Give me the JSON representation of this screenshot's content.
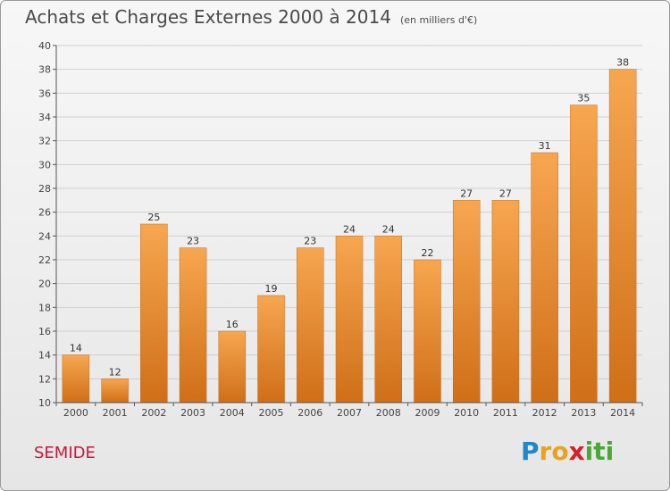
{
  "header": {
    "title": "Achats et Charges Externes 2000 à 2014",
    "unit": "(en milliers d'€)"
  },
  "footer": {
    "town": "SEMIDE",
    "logo_letters": [
      "P",
      "r",
      "o",
      "x",
      "i",
      "t",
      "i"
    ]
  },
  "colors": {
    "bar_light": "#f7a650",
    "bar_dark": "#cf6f18",
    "grid": "#cfcfcf",
    "axis": "#555555",
    "town": "#c8173d"
  },
  "chart_data": {
    "type": "bar",
    "categories": [
      "2000",
      "2001",
      "2002",
      "2003",
      "2004",
      "2005",
      "2006",
      "2007",
      "2008",
      "2009",
      "2010",
      "2011",
      "2012",
      "2013",
      "2014"
    ],
    "values": [
      14,
      12,
      25,
      23,
      16,
      19,
      23,
      24,
      24,
      22,
      27,
      27,
      31,
      35,
      38
    ],
    "ylim": [
      10,
      40
    ],
    "yticks": [
      10,
      12,
      14,
      16,
      18,
      20,
      22,
      24,
      26,
      28,
      30,
      32,
      34,
      36,
      38,
      40
    ],
    "grid": true,
    "data_labels": true
  }
}
